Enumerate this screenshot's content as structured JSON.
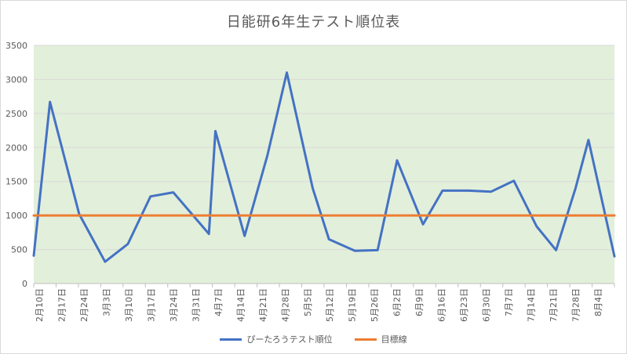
{
  "chart_data": {
    "type": "line",
    "title": "日能研6年生テスト順位表",
    "ylim": [
      0,
      3500
    ],
    "yticks": [
      "0",
      "500",
      "1000",
      "1500",
      "2000",
      "2500",
      "3000",
      "3500"
    ],
    "categories": [
      "2月10日",
      "2月17日",
      "2月24日",
      "3月3日",
      "3月10日",
      "3月17日",
      "3月24日",
      "3月31日",
      "4月7日",
      "4月14日",
      "4月21日",
      "4月28日",
      "5月5日",
      "5月12日",
      "5月19日",
      "5月26日",
      "6月2日",
      "6月9日",
      "6月16日",
      "6月23日",
      "6月30日",
      "7月7日",
      "7月14日",
      "7月21日",
      "7月28日",
      "8月4日"
    ],
    "series": [
      {
        "name": "ぴーたろうテスト順位",
        "color": "#4472c4",
        "points": [
          [
            "2026-02-09",
            410
          ],
          [
            "2026-02-14",
            2670
          ],
          [
            "2026-02-23",
            1020
          ],
          [
            "2026-03-03",
            320
          ],
          [
            "2026-03-10",
            580
          ],
          [
            "2026-03-17",
            1280
          ],
          [
            "2026-03-24",
            1340
          ],
          [
            "2026-04-04",
            730
          ],
          [
            "2026-04-06",
            2240
          ],
          [
            "2026-04-15",
            700
          ],
          [
            "2026-04-22",
            1880
          ],
          [
            "2026-04-28",
            3100
          ],
          [
            "2026-05-06",
            1400
          ],
          [
            "2026-05-11",
            650
          ],
          [
            "2026-05-19",
            480
          ],
          [
            "2026-05-26",
            490
          ],
          [
            "2026-06-01",
            1810
          ],
          [
            "2026-06-09",
            870
          ],
          [
            "2026-06-15",
            1365
          ],
          [
            "2026-06-23",
            1365
          ],
          [
            "2026-06-30",
            1350
          ],
          [
            "2026-07-07",
            1510
          ],
          [
            "2026-07-14",
            840
          ],
          [
            "2026-07-20",
            490
          ],
          [
            "2026-07-26",
            1400
          ],
          [
            "2026-07-30",
            2110
          ],
          [
            "2026-08-07",
            400
          ]
        ]
      },
      {
        "name": "目標線",
        "color": "#ed7d31",
        "points": [
          [
            "2026-02-09",
            1000
          ],
          [
            "2026-08-07",
            1000
          ]
        ]
      }
    ],
    "legend_position": "bottom",
    "grid": true,
    "plot_background": "#e2efda",
    "gridline_color": "#d9d9d9"
  }
}
